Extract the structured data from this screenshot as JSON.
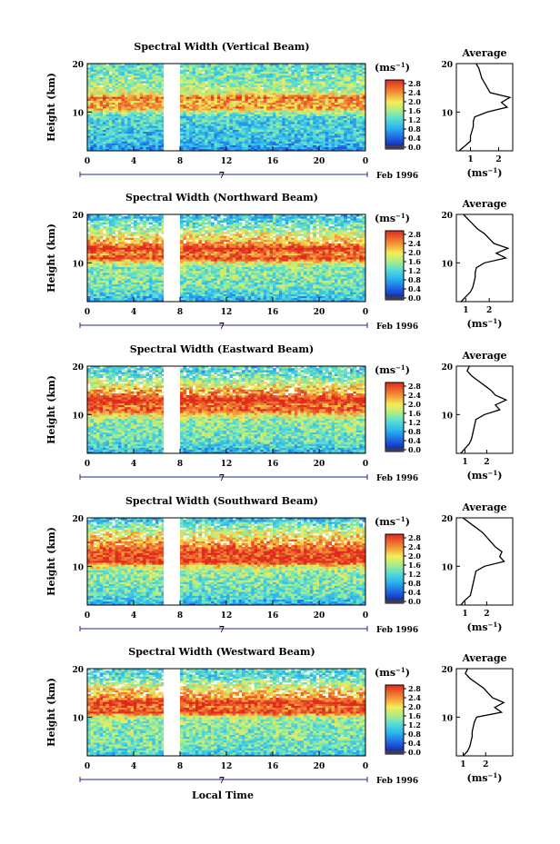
{
  "figure": {
    "xlabel": "Local Time",
    "date_label": "Feb 1996",
    "day_label": "7",
    "colorbar_unit": "(ms",
    "colorbar_unit_exp": "−1",
    "colorbar_ticks": [
      "0.0",
      "0.4",
      "0.8",
      "1.2",
      "1.6",
      "2.0",
      "2.4",
      "2.8"
    ],
    "average_title": "Average",
    "average_unit": "(ms",
    "average_unit_exp": "−1"
  },
  "chart_data": [
    {
      "type": "heatmap",
      "title": "Spectral Width (Vertical Beam)",
      "ylabel": "Height (km)",
      "xlabel": "Local Time",
      "x_ticks": [
        "0",
        "4",
        "8",
        "12",
        "16",
        "20",
        "0"
      ],
      "y_ticks": [
        "10",
        "20"
      ],
      "xlim": [
        0,
        24
      ],
      "ylim": [
        2,
        20
      ],
      "data_gap_hours": [
        6.6,
        8.0
      ],
      "colorbar": {
        "min": 0.0,
        "max": 2.8,
        "unit": "ms^-1"
      },
      "profile": {
        "title": "Average",
        "xlabel": "(ms^-1)",
        "x_ticks": [
          "1",
          "2"
        ],
        "xlim": [
          0.5,
          2.5
        ],
        "heights": [
          2,
          3,
          4,
          5,
          6,
          7,
          8,
          9,
          10,
          11,
          12,
          13,
          14,
          15,
          16,
          17,
          18,
          19,
          20
        ],
        "values": [
          0.6,
          0.8,
          1.0,
          1.0,
          1.05,
          1.1,
          1.1,
          1.15,
          1.6,
          2.3,
          2.1,
          2.4,
          1.7,
          1.6,
          1.5,
          1.4,
          1.35,
          1.3,
          1.2
        ]
      }
    },
    {
      "type": "heatmap",
      "title": "Spectral Width (Northward Beam)",
      "ylabel": "Height (km)",
      "xlabel": "Local Time",
      "x_ticks": [
        "0",
        "4",
        "8",
        "12",
        "16",
        "20",
        "0"
      ],
      "y_ticks": [
        "10",
        "20"
      ],
      "xlim": [
        0,
        24
      ],
      "ylim": [
        2,
        20
      ],
      "data_gap_hours": [
        6.6,
        8.0
      ],
      "colorbar": {
        "min": 0.0,
        "max": 2.8,
        "unit": "ms^-1"
      },
      "profile": {
        "title": "Average",
        "xlabel": "(ms^-1)",
        "x_ticks": [
          "1",
          "2"
        ],
        "xlim": [
          0.6,
          3.0
        ],
        "heights": [
          2,
          3,
          4,
          5,
          6,
          7,
          8,
          9,
          10,
          11,
          12,
          13,
          14,
          15,
          16,
          17,
          18,
          19,
          20
        ],
        "values": [
          0.8,
          1.0,
          1.2,
          1.3,
          1.35,
          1.4,
          1.4,
          1.45,
          1.8,
          2.7,
          2.3,
          2.8,
          2.2,
          2.0,
          1.8,
          1.5,
          1.3,
          1.1,
          0.9
        ]
      }
    },
    {
      "type": "heatmap",
      "title": "Spectral Width (Eastward Beam)",
      "ylabel": "Height (km)",
      "xlabel": "Local Time",
      "x_ticks": [
        "0",
        "4",
        "8",
        "12",
        "16",
        "20",
        "0"
      ],
      "y_ticks": [
        "10",
        "20"
      ],
      "xlim": [
        0,
        24
      ],
      "ylim": [
        2,
        20
      ],
      "data_gap_hours": [
        6.6,
        8.0
      ],
      "colorbar": {
        "min": 0.0,
        "max": 2.8,
        "unit": "ms^-1"
      },
      "profile": {
        "title": "Average",
        "xlabel": "(ms^-1)",
        "x_ticks": [
          "1",
          "2"
        ],
        "xlim": [
          0.6,
          3.2
        ],
        "heights": [
          2,
          3,
          4,
          5,
          6,
          7,
          8,
          9,
          10,
          11,
          12,
          13,
          14,
          15,
          16,
          17,
          18,
          19,
          20
        ],
        "values": [
          0.8,
          1.0,
          1.2,
          1.3,
          1.35,
          1.4,
          1.45,
          1.5,
          1.9,
          2.6,
          2.4,
          2.9,
          2.4,
          2.2,
          1.9,
          1.6,
          1.3,
          1.1,
          1.2
        ]
      }
    },
    {
      "type": "heatmap",
      "title": "Spectral Width (Southward Beam)",
      "ylabel": "Height (km)",
      "xlabel": "Local Time",
      "x_ticks": [
        "0",
        "4",
        "8",
        "12",
        "16",
        "20",
        "0"
      ],
      "y_ticks": [
        "10",
        "20"
      ],
      "xlim": [
        0,
        24
      ],
      "ylim": [
        2,
        20
      ],
      "data_gap_hours": [
        6.6,
        8.0
      ],
      "colorbar": {
        "min": 0.0,
        "max": 2.8,
        "unit": "ms^-1"
      },
      "profile": {
        "title": "Average",
        "xlabel": "(ms^-1)",
        "x_ticks": [
          "1",
          "2"
        ],
        "xlim": [
          0.6,
          3.2
        ],
        "heights": [
          2,
          3,
          4,
          5,
          6,
          7,
          8,
          9,
          10,
          11,
          12,
          13,
          14,
          15,
          16,
          17,
          18,
          19,
          20
        ],
        "values": [
          0.8,
          1.0,
          1.25,
          1.3,
          1.35,
          1.4,
          1.45,
          1.5,
          1.9,
          2.8,
          2.6,
          2.7,
          2.4,
          2.2,
          2.0,
          1.8,
          1.5,
          1.2,
          0.9
        ]
      }
    },
    {
      "type": "heatmap",
      "title": "Spectral Width (Westward Beam)",
      "ylabel": "Height (km)",
      "xlabel": "Local Time",
      "x_ticks": [
        "0",
        "4",
        "8",
        "12",
        "16",
        "20",
        "0"
      ],
      "y_ticks": [
        "10",
        "20"
      ],
      "xlim": [
        0,
        24
      ],
      "ylim": [
        2,
        20
      ],
      "data_gap_hours": [
        6.6,
        8.0
      ],
      "colorbar": {
        "min": 0.0,
        "max": 2.8,
        "unit": "ms^-1"
      },
      "profile": {
        "title": "Average",
        "xlabel": "(ms^-1)",
        "x_ticks": [
          "1",
          "2"
        ],
        "xlim": [
          0.7,
          3.2
        ],
        "heights": [
          2,
          3,
          4,
          5,
          6,
          7,
          8,
          9,
          10,
          11,
          12,
          13,
          14,
          15,
          16,
          17,
          18,
          19,
          20
        ],
        "values": [
          1.0,
          1.2,
          1.3,
          1.35,
          1.4,
          1.4,
          1.45,
          1.5,
          1.6,
          2.7,
          2.4,
          2.8,
          2.3,
          2.1,
          1.9,
          1.6,
          1.3,
          1.1,
          1.2
        ]
      }
    }
  ]
}
